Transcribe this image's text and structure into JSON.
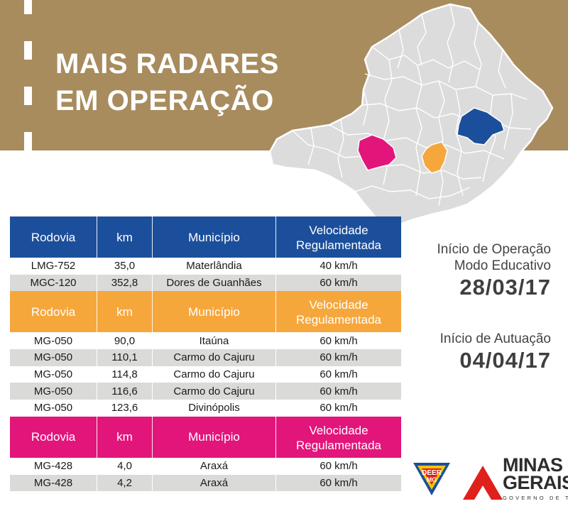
{
  "title": {
    "line1": "MAIS RADARES",
    "line2": "EM OPERAÇÃO"
  },
  "colors": {
    "banner": "#a88c5e",
    "blue": "#1c4f9b",
    "orange": "#f6a73c",
    "pink": "#e2157b",
    "row_alt": "#dadad9",
    "map_fill": "#dcdcdc"
  },
  "table_headers": {
    "rodovia": "Rodovia",
    "km": "km",
    "municipio": "Município",
    "velocidade_1": "Velocidade",
    "velocidade_2": "Regulamentada"
  },
  "groups": [
    {
      "color": "blue",
      "rows": [
        {
          "rodovia": "LMG-752",
          "km": "35,0",
          "municipio": "Materlândia",
          "velocidade": "40 km/h"
        },
        {
          "rodovia": "MGC-120",
          "km": "352,8",
          "municipio": "Dores de Guanhães",
          "velocidade": "60 km/h"
        }
      ]
    },
    {
      "color": "orange",
      "rows": [
        {
          "rodovia": "MG-050",
          "km": "90,0",
          "municipio": "Itaúna",
          "velocidade": "60 km/h"
        },
        {
          "rodovia": "MG-050",
          "km": "110,1",
          "municipio": "Carmo do Cajuru",
          "velocidade": "60 km/h"
        },
        {
          "rodovia": "MG-050",
          "km": "114,8",
          "municipio": "Carmo do Cajuru",
          "velocidade": "60 km/h"
        },
        {
          "rodovia": "MG-050",
          "km": "116,6",
          "municipio": "Carmo do Cajuru",
          "velocidade": "60 km/h"
        },
        {
          "rodovia": "MG-050",
          "km": "123,6",
          "municipio": "Divinópolis",
          "velocidade": "60 km/h"
        }
      ]
    },
    {
      "color": "pink",
      "rows": [
        {
          "rodovia": "MG-428",
          "km": "4,0",
          "municipio": "Araxá",
          "velocidade": "60 km/h"
        },
        {
          "rodovia": "MG-428",
          "km": "4,2",
          "municipio": "Araxá",
          "velocidade": "60 km/h"
        }
      ]
    }
  ],
  "side_info": {
    "inicio_operacao_line1": "Início de Operação",
    "inicio_operacao_line2": "Modo Educativo",
    "inicio_operacao_date": "28/03/17",
    "inicio_autuacao_label": "Início de Autuação",
    "inicio_autuacao_date": "04/04/17"
  },
  "logos": {
    "deer_line1": "DEER",
    "deer_line2": "MG",
    "mg_line1": "MINAS",
    "mg_line2": "GERAIS",
    "mg_sub": "GOVERNO DE TODOS"
  }
}
